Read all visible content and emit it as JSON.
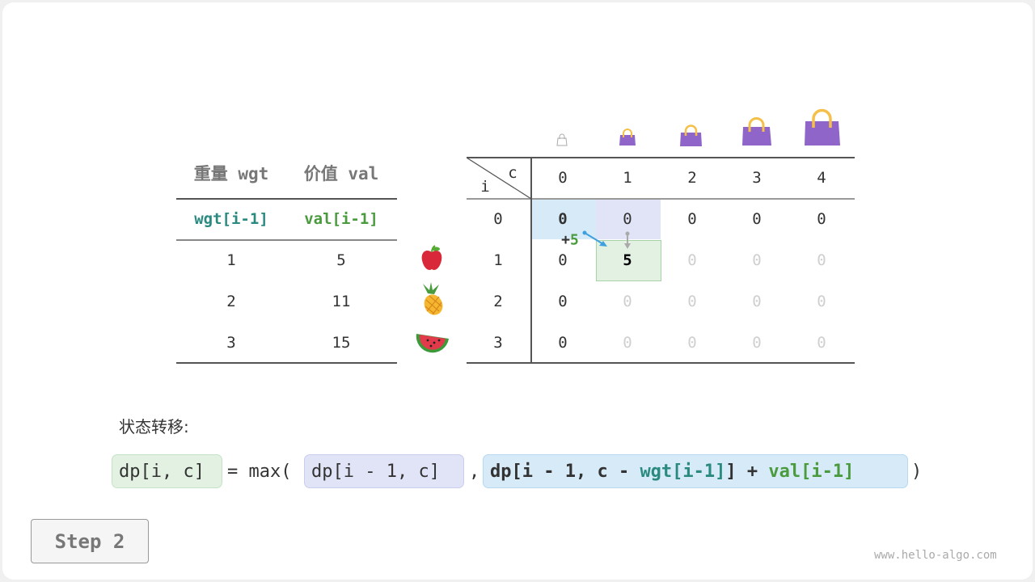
{
  "items_table": {
    "headers": [
      "重量 wgt",
      "价值 val"
    ],
    "subheaders": [
      "wgt[i-1]",
      "val[i-1]"
    ],
    "rows": [
      [
        "1",
        "5"
      ],
      [
        "2",
        "11"
      ],
      [
        "3",
        "15"
      ]
    ],
    "item_icons": [
      "apple-icon",
      "pineapple-icon",
      "watermelon-icon"
    ]
  },
  "dp_table": {
    "corner_c": "c",
    "corner_i": "i",
    "cols": [
      "0",
      "1",
      "2",
      "3",
      "4"
    ],
    "rows": [
      "0",
      "1",
      "2",
      "3"
    ],
    "values": [
      [
        "0",
        "0",
        "0",
        "0",
        "0"
      ],
      [
        "0",
        "5",
        "0",
        "0",
        "0"
      ],
      [
        "0",
        "0",
        "0",
        "0",
        "0"
      ],
      [
        "0",
        "0",
        "0",
        "0",
        "0"
      ]
    ],
    "bag_icons": [
      "bag-capacity-0",
      "bag-capacity-1",
      "bag-capacity-2",
      "bag-capacity-3",
      "bag-capacity-4"
    ],
    "annotation": {
      "plus": "+",
      "value": "5"
    }
  },
  "formula": {
    "label": "状态转移:",
    "lhs": "dp[i, c]",
    "eq": "= max(",
    "opt1": "dp[i - 1, c]",
    "comma": ",",
    "opt2_a": "dp[i - 1, c - ",
    "opt2_wgt": "wgt[i-1]",
    "opt2_b": "] + ",
    "opt2_val": "val[i-1]",
    "close": ")"
  },
  "step_button": "Step 2",
  "watermark": "www.hello-algo.com",
  "colors": {
    "wgt": "#2a8a80",
    "val": "#4a9a3e",
    "bag": "#9065c9",
    "handle": "#f5c04a"
  }
}
